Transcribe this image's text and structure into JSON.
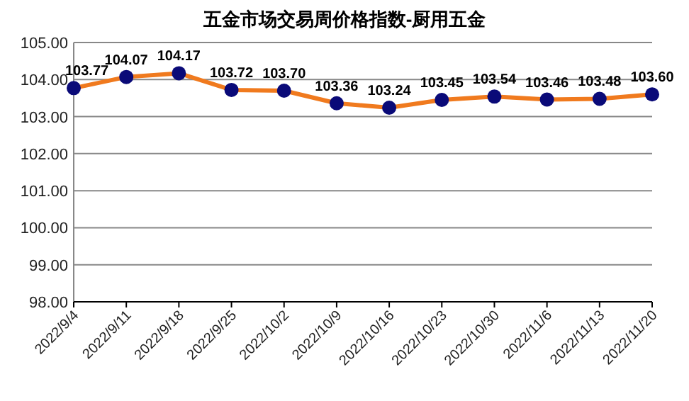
{
  "chart_data": {
    "type": "line",
    "title": "五金市场交易周价格指数-厨用五金",
    "categories": [
      "2022/9/4",
      "2022/9/11",
      "2022/9/18",
      "2022/9/25",
      "2022/10/2",
      "2022/10/9",
      "2022/10/16",
      "2022/10/23",
      "2022/10/30",
      "2022/11/6",
      "2022/11/13",
      "2022/11/20"
    ],
    "series": [
      {
        "color": "#f07a1e",
        "values": [
          103.77,
          104.07,
          104.17,
          103.72,
          103.7,
          103.36,
          103.24,
          103.45,
          103.54,
          103.46,
          103.48,
          103.6
        ],
        "value_labels": [
          "103.77",
          "104.07",
          "104.17",
          "103.72",
          "103.70",
          "103.36",
          "103.24",
          "103.45",
          "103.54",
          "103.46",
          "103.48",
          "103.60"
        ]
      }
    ],
    "ylim": [
      98,
      105
    ],
    "yticks": [
      {
        "value": 98,
        "label": "98.00"
      },
      {
        "value": 99,
        "label": "99.00"
      },
      {
        "value": 100,
        "label": "100.00"
      },
      {
        "value": 101,
        "label": "101.00"
      },
      {
        "value": 102,
        "label": "102.00"
      },
      {
        "value": 103,
        "label": "103.00"
      },
      {
        "value": 104,
        "label": "104.00"
      },
      {
        "value": 105,
        "label": "105.00"
      }
    ],
    "grid": "y",
    "marker": "circle"
  }
}
